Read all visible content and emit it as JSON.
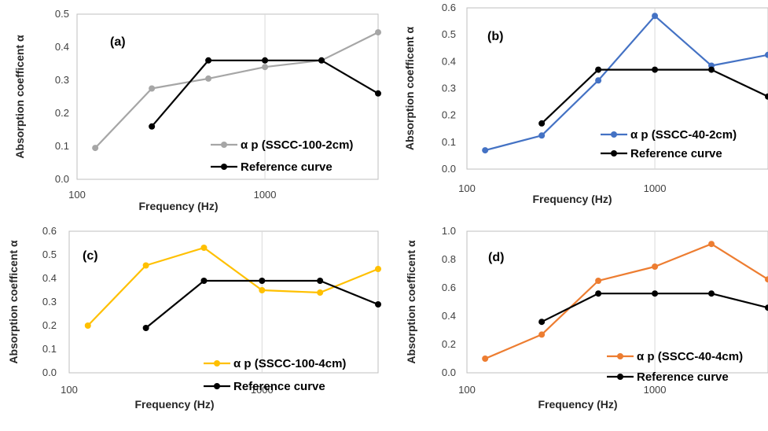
{
  "chart_data": [
    {
      "type": "line",
      "panel_label": "(a)",
      "xlabel": "Frequency (Hz)",
      "ylabel": "Absorption coefficent α",
      "xscale": "log",
      "xlim": [
        100,
        4000
      ],
      "ylim": [
        0.0,
        0.5
      ],
      "yticks": [
        "0.0",
        "0.1",
        "0.2",
        "0.3",
        "0.4",
        "0.5"
      ],
      "xticks": [
        "100",
        "1000"
      ],
      "grid": "vertical",
      "legend": "bottom-right",
      "series": [
        {
          "name": "α p (SSCC-100-2cm)",
          "color": "#a6a6a6",
          "x": [
            125,
            250,
            500,
            1000,
            2000,
            4000
          ],
          "values": [
            0.095,
            0.275,
            0.305,
            0.34,
            0.36,
            0.445
          ]
        },
        {
          "name": "Reference curve",
          "color": "#000000",
          "x": [
            250,
            500,
            1000,
            2000,
            4000
          ],
          "values": [
            0.16,
            0.36,
            0.36,
            0.36,
            0.26
          ]
        }
      ]
    },
    {
      "type": "line",
      "panel_label": "(b)",
      "xlabel": "Frequency (Hz)",
      "ylabel": "Absorption coefficent α",
      "xscale": "log",
      "xlim": [
        100,
        4000
      ],
      "ylim": [
        0.0,
        0.6
      ],
      "yticks": [
        "0.0",
        "0.1",
        "0.2",
        "0.3",
        "0.4",
        "0.5",
        "0.6"
      ],
      "xticks": [
        "100",
        "1000"
      ],
      "grid": "vertical",
      "legend": "bottom-right",
      "series": [
        {
          "name": "α p (SSCC-40-2cm)",
          "color": "#4472c4",
          "x": [
            125,
            250,
            500,
            1000,
            2000,
            4000
          ],
          "values": [
            0.07,
            0.125,
            0.33,
            0.57,
            0.385,
            0.425
          ]
        },
        {
          "name": "Reference curve",
          "color": "#000000",
          "x": [
            250,
            500,
            1000,
            2000,
            4000
          ],
          "values": [
            0.17,
            0.37,
            0.37,
            0.37,
            0.27
          ]
        }
      ]
    },
    {
      "type": "line",
      "panel_label": "(c)",
      "xlabel": "Frequency (Hz)",
      "ylabel": "Absorption coefficent α",
      "xscale": "log",
      "xlim": [
        100,
        4000
      ],
      "ylim": [
        0.0,
        0.6
      ],
      "yticks": [
        "0.0",
        "0.1",
        "0.2",
        "0.3",
        "0.4",
        "0.5",
        "0.6"
      ],
      "xticks": [
        "100",
        "1000"
      ],
      "grid": "vertical",
      "legend": "bottom-right",
      "series": [
        {
          "name": "α p (SSCC-100-4cm)",
          "color": "#ffc000",
          "x": [
            125,
            250,
            500,
            1000,
            2000,
            4000
          ],
          "values": [
            0.2,
            0.455,
            0.53,
            0.35,
            0.34,
            0.44
          ]
        },
        {
          "name": "Reference curve",
          "color": "#000000",
          "x": [
            250,
            500,
            1000,
            2000,
            4000
          ],
          "values": [
            0.19,
            0.39,
            0.39,
            0.39,
            0.29
          ]
        }
      ]
    },
    {
      "type": "line",
      "panel_label": "(d)",
      "xlabel": "Frequency (Hz)",
      "ylabel": "Absorption coefficent α",
      "xscale": "log",
      "xlim": [
        100,
        4000
      ],
      "ylim": [
        0.0,
        1.0
      ],
      "yticks": [
        "0.0",
        "0.2",
        "0.4",
        "0.6",
        "0.8",
        "1.0"
      ],
      "xticks": [
        "100",
        "1000"
      ],
      "grid": "vertical",
      "legend": "bottom-right",
      "series": [
        {
          "name": "α p (SSCC-40-4cm)",
          "color": "#ed7d31",
          "x": [
            125,
            250,
            500,
            1000,
            2000,
            4000
          ],
          "values": [
            0.1,
            0.27,
            0.65,
            0.75,
            0.91,
            0.66
          ]
        },
        {
          "name": "Reference curve",
          "color": "#000000",
          "x": [
            250,
            500,
            1000,
            2000,
            4000
          ],
          "values": [
            0.36,
            0.56,
            0.56,
            0.56,
            0.46
          ]
        }
      ]
    }
  ]
}
